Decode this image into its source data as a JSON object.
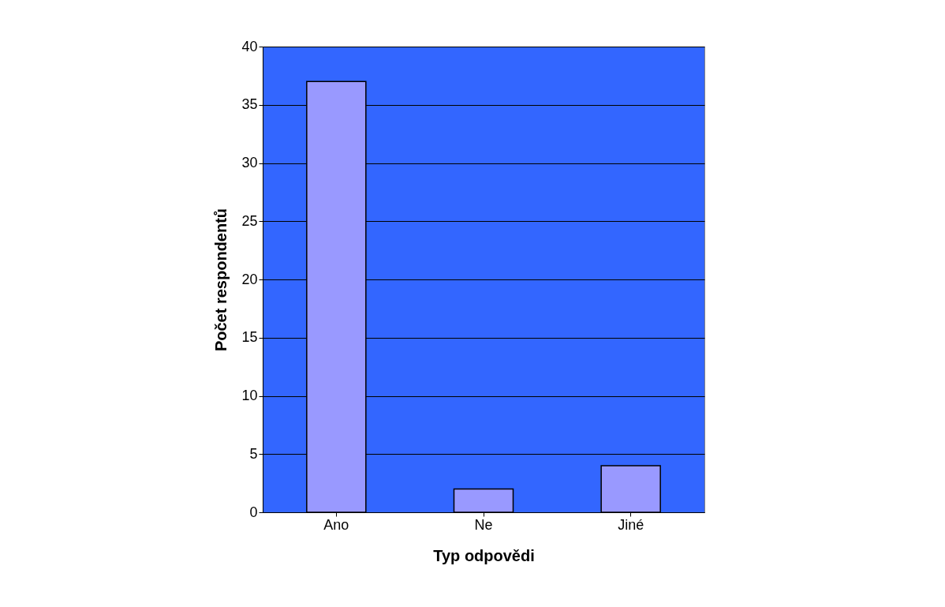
{
  "chart_data": {
    "type": "bar",
    "xlabel": "Typ odpovědi",
    "ylabel": "Počet respondentů",
    "categories": [
      "Ano",
      "Ne",
      "Jiné"
    ],
    "series": [
      {
        "color": "#9999ff",
        "values": [
          37,
          2,
          4
        ]
      }
    ],
    "ylim": [
      0,
      40
    ],
    "yticks": [
      0,
      5,
      10,
      15,
      20,
      25,
      30,
      35,
      40
    ],
    "grid": "y"
  }
}
